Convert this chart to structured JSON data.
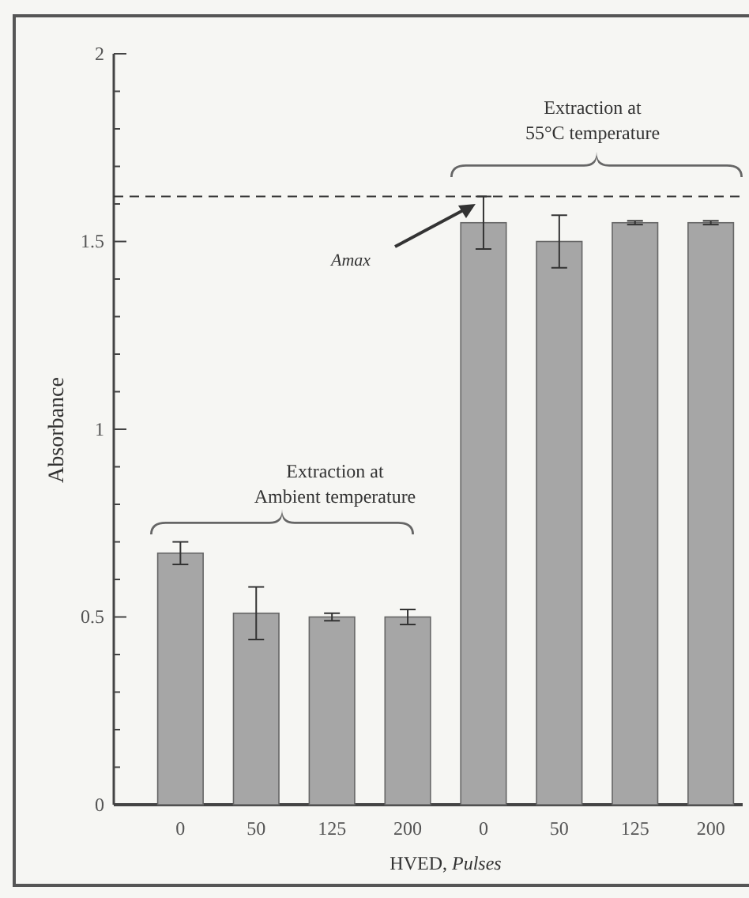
{
  "chart_data": {
    "type": "bar",
    "xlabel": "HVED, $_{}$Pulses",
    "ylabel": "Absorbance",
    "categories": [
      "0",
      "50",
      "125",
      "200",
      "0",
      "50",
      "125",
      "200"
    ],
    "values": [
      0.67,
      0.51,
      0.5,
      0.5,
      1.55,
      1.5,
      1.55,
      1.55
    ],
    "errors": [
      0.03,
      0.07,
      0.01,
      0.02,
      0.07,
      0.07,
      0.005,
      0.005
    ],
    "color": "#a6a6a6",
    "ylim": [
      0,
      2
    ],
    "yticks": [
      0,
      {
        "value": 0.1,
        "label": null
      },
      {
        "value": 0.2,
        "label": null
      },
      {
        "value": 0.3,
        "label": null
      },
      {
        "value": 0.4,
        "label": null
      },
      0.5,
      {
        "value": 0.6,
        "label": null
      },
      {
        "value": 0.7,
        "label": null
      },
      {
        "value": 0.8,
        "label": null
      },
      {
        "value": 0.9,
        "label": null
      },
      1,
      {
        "value": 1.1,
        "label": null
      },
      {
        "value": 1.2,
        "label": null
      },
      {
        "value": 1.3,
        "label": null
      },
      {
        "value": 1.4,
        "label": null
      },
      1.5,
      {
        "value": 1.6,
        "label": null
      },
      {
        "value": 1.7,
        "label": null
      },
      {
        "value": 1.8,
        "label": null
      },
      {
        "value": 1.9,
        "label": null
      },
      2
    ],
    "ref_lines": [
      {
        "axis": "y",
        "value": 1.62,
        "line_style": "dashed",
        "color": "#333333"
      }
    ],
    "annotations": [
      "Extraction at\nAmbient temperature",
      "Extraction at\n55°C temperature",
      "Amax"
    ]
  }
}
